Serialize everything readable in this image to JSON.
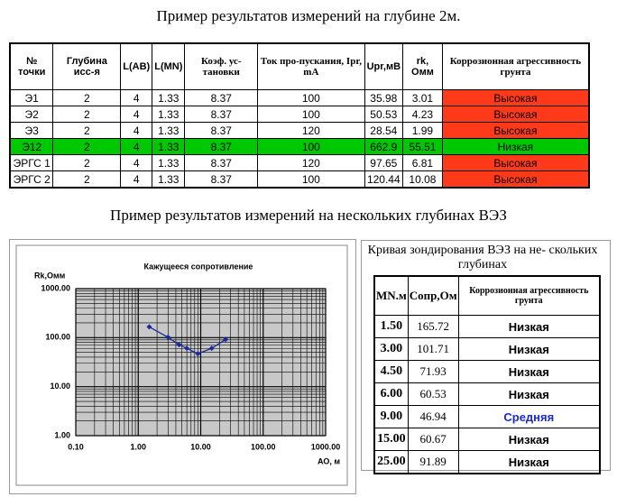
{
  "title1": "Пример результатов измерений на глубине 2м.",
  "table1": {
    "headers": [
      "№ точки",
      "Глубина исс-я",
      "L(AB)",
      "L(MN)",
      "Коэф. ус-тановки",
      "Ток про-пускания, Ipr, mA",
      "Upr,мВ",
      "rk, Омм",
      "Коррозионная агрессивность грунта"
    ],
    "rows": [
      [
        "Э1",
        "2",
        "4",
        "1.33",
        "8.37",
        "100",
        "35.98",
        "3.01",
        "Высокая"
      ],
      [
        "Э2",
        "2",
        "4",
        "1.33",
        "8.37",
        "100",
        "50.53",
        "4.23",
        "Высокая"
      ],
      [
        "Э3",
        "2",
        "4",
        "1.33",
        "8.37",
        "120",
        "28.54",
        "1.99",
        "Высокая"
      ],
      [
        "Э12",
        "2",
        "4",
        "1.33",
        "8.37",
        "100",
        "662.9",
        "55.51",
        "Низкая"
      ],
      [
        "ЭРГС 1",
        "2",
        "4",
        "1.33",
        "8.37",
        "120",
        "97.65",
        "6.81",
        "Высокая"
      ],
      [
        "ЭРГС 2",
        "2",
        "4",
        "1.33",
        "8.37",
        "100",
        "120.44",
        "10.08",
        "Высокая"
      ]
    ],
    "row_fills": [
      "#ffffff",
      "#ffffff",
      "#ffffff",
      "#00c800",
      "#ffffff",
      "#ffffff"
    ],
    "status_fills": [
      "#ff3a1a",
      "#ff3a1a",
      "#ff3a1a",
      "#00c800",
      "#ff3a1a",
      "#ff3a1a"
    ]
  },
  "title2": "Пример результатов измерений на нескольких глубинах ВЭЗ",
  "chart_data": {
    "type": "line",
    "title": "Кажущееся сопротивление",
    "y_label": "Rk,Омм",
    "x_label": "АО, м",
    "x": [
      1.5,
      3,
      4.5,
      6,
      9,
      15,
      25
    ],
    "values": [
      165.72,
      101.71,
      71.93,
      60.53,
      46.94,
      60.67,
      91.89
    ],
    "color": "#1a2a9a",
    "x_log": true,
    "y_log": true,
    "grid": true,
    "xlim": [
      0.1,
      1000
    ],
    "ylim": [
      1,
      1000
    ],
    "xticks": [
      {
        "value": 0.1,
        "label": "0.10"
      },
      {
        "value": 1,
        "label": "1.00"
      },
      {
        "value": 10,
        "label": "10.00"
      },
      {
        "value": 100,
        "label": "100.00"
      },
      {
        "value": 1000,
        "label": "1000.00"
      }
    ],
    "yticks": [
      {
        "value": 1,
        "label": "1.00"
      },
      {
        "value": 10,
        "label": "10.00"
      },
      {
        "value": 100,
        "label": "100.00"
      },
      {
        "value": 1000,
        "label": "1000.00"
      }
    ]
  },
  "table2": {
    "title": "Кривая зондирования ВЭЗ на не- скольких глубинах",
    "headers": [
      "MN.м",
      "Сопр,Ом",
      "Коррозионная агрессивность грунта"
    ],
    "rows": [
      [
        "1.50",
        "165.72",
        "Низкая"
      ],
      [
        "3.00",
        "101.71",
        "Низкая"
      ],
      [
        "4.50",
        "71.93",
        "Низкая"
      ],
      [
        "6.00",
        "60.53",
        "Низкая"
      ],
      [
        "9.00",
        "46.94",
        "Средняя"
      ],
      [
        "15.00",
        "60.67",
        "Низкая"
      ],
      [
        "25.00",
        "91.89",
        "Низкая"
      ]
    ],
    "status_colors": [
      "#000000",
      "#000000",
      "#000000",
      "#000000",
      "#1a2ad0",
      "#000000",
      "#000000"
    ]
  }
}
